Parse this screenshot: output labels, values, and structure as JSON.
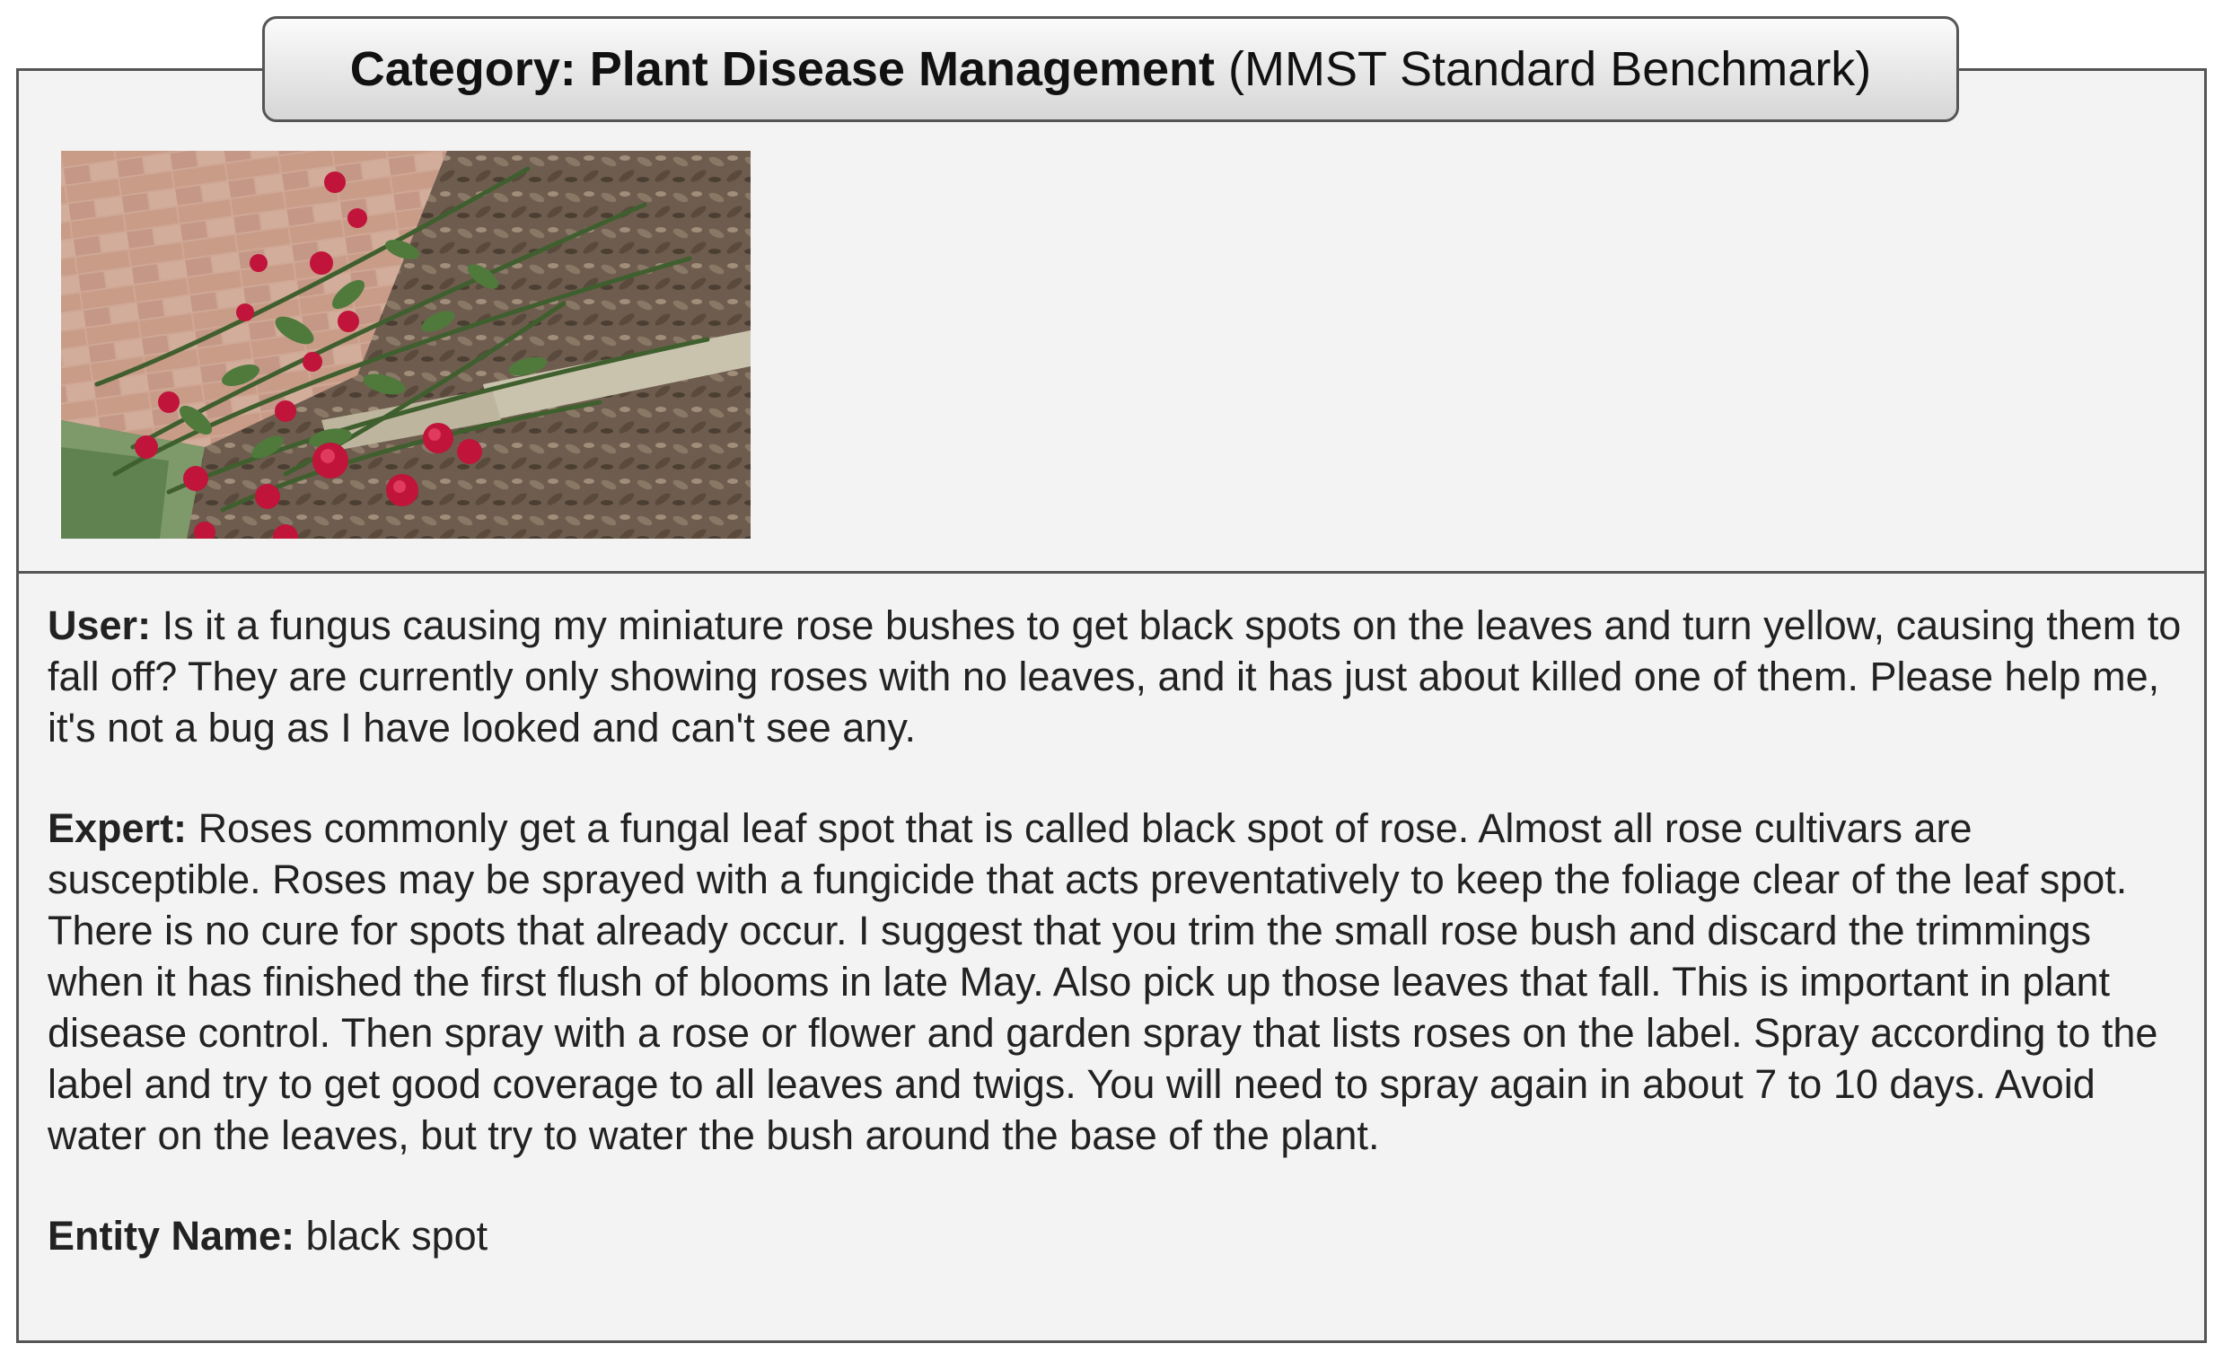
{
  "header": {
    "category_label": "Category:",
    "category_value": "Plant Disease Management",
    "benchmark": "(MMST Standard Benchmark)"
  },
  "photo": {
    "icon": "rose-bush-photo",
    "colors": {
      "brick": "#c9a08e",
      "leaf": "#4f7a3c",
      "rose": "#c0143a",
      "mulch": "#6e5d4e"
    }
  },
  "dialogue": {
    "user_label": "User:",
    "user_text": "Is it a fungus causing my miniature rose bushes to get black spots on the leaves and turn yellow, causing them to fall off? They are currently only showing roses with no leaves, and it has just about killed one of them. Please help me, it's not a bug as I have looked and can't see any.",
    "expert_label": "Expert:",
    "expert_text": "Roses commonly get a fungal leaf spot that is called black spot of rose. Almost all rose cultivars are susceptible. Roses may be sprayed with a fungicide that acts preventatively to keep the foliage clear of the leaf spot. There is no cure for spots that already occur. I suggest that you trim the small rose bush and discard the trimmings when it has finished the first flush of blooms in late May. Also pick up those leaves that fall. This is important in plant disease control. Then spray with a rose or flower and garden spray that lists roses on the label. Spray according to the label and try to get good coverage to all leaves and twigs. You will need to spray again in about 7 to 10 days. Avoid water on the leaves, but try to water the bush around the base of the plant.",
    "entity_label": "Entity Name:",
    "entity_value": "black spot"
  }
}
